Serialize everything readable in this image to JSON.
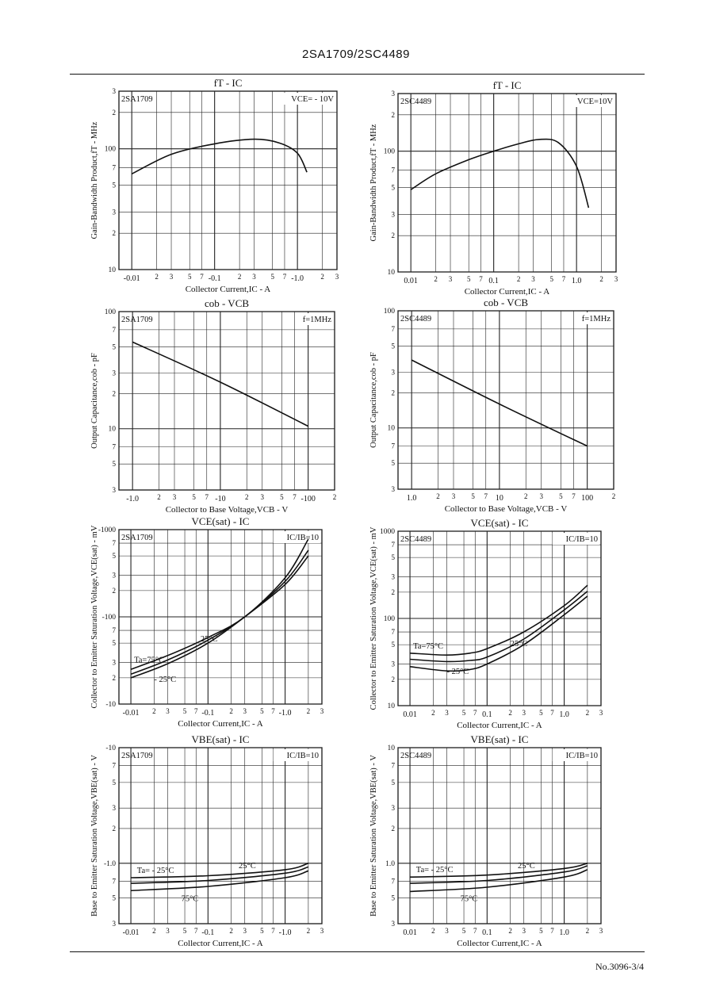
{
  "header": {
    "title": "2SA1709/2SC4489"
  },
  "footer": {
    "page_number": "No.3096-3/4"
  },
  "chart_data": [
    {
      "type": "line",
      "title": "fT - IC",
      "device": "2SA1709",
      "condition": "VCE= - 10V",
      "xlabel": "Collector Current,IC - A",
      "ylabel": "Gain-Bandwidth Product,fT - MHz",
      "xscale": "log",
      "yscale": "log",
      "xlim": [
        0.007,
        3
      ],
      "ylim": [
        10,
        300
      ],
      "x_major_labels": [
        "-0.01",
        "-0.1",
        "-1.0"
      ],
      "y_major_labels": [
        "10",
        "100"
      ],
      "series": [
        {
          "name": "",
          "x": [
            0.01,
            0.03,
            0.1,
            0.3,
            0.6,
            1.0,
            1.3
          ],
          "y": [
            62,
            90,
            110,
            120,
            112,
            92,
            64
          ]
        }
      ]
    },
    {
      "type": "line",
      "title": "fT - IC",
      "device": "2SC4489",
      "condition": "VCE=10V",
      "xlabel": "Collector Current,IC - A",
      "ylabel": "Gain-Bandwidth Product,fT - MHz",
      "xscale": "log",
      "yscale": "log",
      "xlim": [
        0.007,
        3
      ],
      "ylim": [
        10,
        300
      ],
      "x_major_labels": [
        "0.01",
        "0.1",
        "1.0"
      ],
      "y_major_labels": [
        "10",
        "100"
      ],
      "series": [
        {
          "name": "",
          "x": [
            0.01,
            0.02,
            0.05,
            0.1,
            0.2,
            0.35,
            0.6,
            1.0,
            1.4
          ],
          "y": [
            48,
            65,
            85,
            100,
            115,
            125,
            118,
            75,
            34
          ]
        }
      ]
    },
    {
      "type": "line",
      "title": "cob - VCB",
      "device": "2SA1709",
      "condition": "f=1MHz",
      "xlabel": "Collector to Base Voltage,VCB - V",
      "ylabel": "Output Capacitance,cob - pF",
      "xscale": "log",
      "yscale": "log",
      "xlim": [
        0.7,
        200
      ],
      "ylim": [
        3,
        100
      ],
      "x_major_labels": [
        "-1.0",
        "-10",
        "-100"
      ],
      "y_major_labels": [
        "10",
        "100"
      ],
      "series": [
        {
          "name": "",
          "x": [
            1,
            10,
            100
          ],
          "y": [
            55,
            25,
            10.5
          ]
        }
      ]
    },
    {
      "type": "line",
      "title": "cob - VCB",
      "device": "2SC4489",
      "condition": "f=1MHz",
      "xlabel": "Collector to Base Voltage,VCB - V",
      "ylabel": "Output Capacitance,cob - pF",
      "xscale": "log",
      "yscale": "log",
      "xlim": [
        0.7,
        200
      ],
      "ylim": [
        3,
        100
      ],
      "x_major_labels": [
        "1.0",
        "10",
        "100"
      ],
      "y_major_labels": [
        "10",
        "100"
      ],
      "series": [
        {
          "name": "",
          "x": [
            1,
            10,
            100
          ],
          "y": [
            38,
            16,
            7
          ]
        }
      ]
    },
    {
      "type": "line",
      "title": "VCE(sat) - IC",
      "device": "2SA1709",
      "condition": "IC/IB=10",
      "xlabel": "Collector Current,IC - A",
      "ylabel": "Collector to Emitter Saturation Voltage,VCE(sat) - mV",
      "xscale": "log",
      "yscale": "log",
      "xlim": [
        0.007,
        3
      ],
      "ylim": [
        10,
        1000
      ],
      "x_major_labels": [
        "-0.01",
        "-0.1",
        "-1.0"
      ],
      "y_major_labels": [
        "-10",
        "-100",
        "-1000"
      ],
      "series": [
        {
          "name": "Ta=75°C",
          "x": [
            0.01,
            0.03,
            0.1,
            0.3,
            1.0,
            2.0
          ],
          "y": [
            25,
            36,
            58,
            100,
            280,
            780
          ]
        },
        {
          "name": "25°C",
          "x": [
            0.01,
            0.03,
            0.1,
            0.3,
            1.0,
            2.0
          ],
          "y": [
            22,
            32,
            54,
            100,
            255,
            580
          ]
        },
        {
          "name": "- 25°C",
          "x": [
            0.01,
            0.03,
            0.1,
            0.3,
            1.0,
            2.0
          ],
          "y": [
            20,
            29,
            50,
            100,
            235,
            500
          ]
        }
      ]
    },
    {
      "type": "line",
      "title": "VCE(sat) - IC",
      "device": "2SC4489",
      "condition": "IC/IB=10",
      "xlabel": "Collector Current,IC - A",
      "ylabel": "Collector to Emitter Saturation Voltage,VCE(sat) - mV",
      "xscale": "log",
      "yscale": "log",
      "xlim": [
        0.007,
        3
      ],
      "ylim": [
        10,
        1000
      ],
      "x_major_labels": [
        "0.01",
        "0.1",
        "1.0"
      ],
      "y_major_labels": [
        "10",
        "100",
        "1000"
      ],
      "series": [
        {
          "name": "Ta=75°C",
          "x": [
            0.01,
            0.03,
            0.06,
            0.1,
            0.3,
            1.0,
            2.0
          ],
          "y": [
            40,
            38,
            40,
            45,
            70,
            140,
            240
          ]
        },
        {
          "name": "25°C",
          "x": [
            0.01,
            0.03,
            0.06,
            0.1,
            0.3,
            1.0,
            2.0
          ],
          "y": [
            34,
            32,
            33,
            36,
            58,
            125,
            205
          ]
        },
        {
          "name": "- 25°C",
          "x": [
            0.01,
            0.03,
            0.06,
            0.1,
            0.3,
            1.0,
            2.0
          ],
          "y": [
            28,
            25,
            26,
            30,
            50,
            110,
            180
          ]
        }
      ]
    },
    {
      "type": "line",
      "title": "VBE(sat) - IC",
      "device": "2SA1709",
      "condition": "IC/IB=10",
      "xlabel": "Collector Current,IC - A",
      "ylabel": "Base to Emitter Saturation Voltage,VBE(sat) - V",
      "xscale": "log",
      "yscale": "log",
      "xlim": [
        0.007,
        3
      ],
      "ylim": [
        0.3,
        10
      ],
      "x_major_labels": [
        "-0.01",
        "-0.1",
        "-1.0"
      ],
      "y_major_labels": [
        "-1.0",
        "-10"
      ],
      "series": [
        {
          "name": "Ta= - 25°C",
          "x": [
            0.01,
            0.1,
            1.0,
            2.0
          ],
          "y": [
            0.75,
            0.78,
            0.88,
            1.0
          ]
        },
        {
          "name": "25°C",
          "x": [
            0.01,
            0.1,
            1.0,
            2.0
          ],
          "y": [
            0.67,
            0.71,
            0.82,
            0.93
          ]
        },
        {
          "name": "75°C",
          "x": [
            0.01,
            0.1,
            1.0,
            2.0
          ],
          "y": [
            0.58,
            0.63,
            0.75,
            0.86
          ]
        }
      ]
    },
    {
      "type": "line",
      "title": "VBE(sat) - IC",
      "device": "2SC4489",
      "condition": "IC/IB=10",
      "xlabel": "Collector Current,IC - A",
      "ylabel": "Base to Emitter Saturation Voltage,VBE(sat) - V",
      "xscale": "log",
      "yscale": "log",
      "xlim": [
        0.007,
        3
      ],
      "ylim": [
        0.3,
        10
      ],
      "x_major_labels": [
        "0.01",
        "0.1",
        "1.0"
      ],
      "y_major_labels": [
        "1.0",
        "10"
      ],
      "series": [
        {
          "name": "Ta= - 25°C",
          "x": [
            0.01,
            0.1,
            1.0,
            2.0
          ],
          "y": [
            0.76,
            0.79,
            0.9,
            1.0
          ]
        },
        {
          "name": "25°C",
          "x": [
            0.01,
            0.1,
            1.0,
            2.0
          ],
          "y": [
            0.67,
            0.71,
            0.84,
            0.95
          ]
        },
        {
          "name": "75°C",
          "x": [
            0.01,
            0.1,
            1.0,
            2.0
          ],
          "y": [
            0.57,
            0.62,
            0.76,
            0.88
          ]
        }
      ]
    }
  ]
}
